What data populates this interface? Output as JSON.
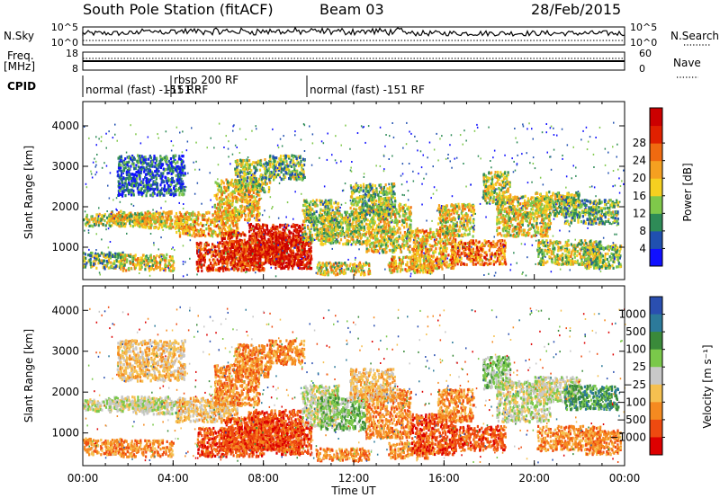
{
  "header": {
    "station": "South Pole Station (fitACF)",
    "beam": "Beam 03",
    "date": "28/Feb/2015"
  },
  "top_panels": {
    "nsky_label": "N.Sky",
    "nsky_ticks": [
      "10^5",
      "10^0"
    ],
    "nsearch_label": "N.Search",
    "nsearch_ticks": [
      "10^5",
      "10^0"
    ],
    "freq_label": "Freq.",
    "freq_unit": "[MHz]",
    "freq_ticks": [
      "18",
      "8"
    ],
    "nave_label": "Nave",
    "nave_ticks": [
      "60",
      "0"
    ],
    "cpid_label": "CPID",
    "cpid_segments": [
      {
        "label": "normal (fast) -151 RF",
        "start_h": 0,
        "end_h": 4
      },
      {
        "label": "rbsp 200 RF",
        "start_h": 4,
        "end_h": 4
      },
      {
        "label": "-151 RF",
        "start_h": 4,
        "end_h": 10
      },
      {
        "label": "normal (fast) -151 RF",
        "start_h": 10,
        "end_h": 24
      }
    ]
  },
  "chart_data": [
    {
      "type": "heatmap",
      "panel": "power",
      "ylabel": "Slant Range [km]",
      "ylim": [
        200,
        4600
      ],
      "yticks": [
        "1000",
        "2000",
        "3000",
        "4000"
      ],
      "xlim_hours": [
        0,
        24
      ],
      "colorbar_label": "Power [dB]",
      "colorbar_ticks": [
        "4",
        "8",
        "12",
        "16",
        "20",
        "24",
        "28"
      ],
      "colorbar_colors": [
        "#1010ff",
        "#2050b0",
        "#2e8b57",
        "#7fc84a",
        "#f5d020",
        "#f5a020",
        "#f06a10",
        "#e02000",
        "#cc0000"
      ]
    },
    {
      "type": "heatmap",
      "panel": "velocity",
      "ylabel": "Slant Range [km]",
      "ylim": [
        200,
        4600
      ],
      "yticks": [
        "1000",
        "2000",
        "3000",
        "4000"
      ],
      "xlim_hours": [
        0,
        24
      ],
      "colorbar_label": "Velocity [m s⁻¹]",
      "colorbar_ticks": [
        "1000",
        "500",
        "100",
        "25",
        "−25",
        "−100",
        "−500",
        "−1000"
      ],
      "colorbar_colors": [
        "#2a4fb0",
        "#2c7a9a",
        "#3a8a3a",
        "#7ac84a",
        "#c8c8c8",
        "#f5c050",
        "#f58a20",
        "#ee4a10",
        "#dd0000"
      ]
    }
  ],
  "xaxis": {
    "ticks": [
      "00:00",
      "04:00",
      "08:00",
      "12:00",
      "16:00",
      "20:00",
      "00:00"
    ],
    "label": "Time UT"
  }
}
